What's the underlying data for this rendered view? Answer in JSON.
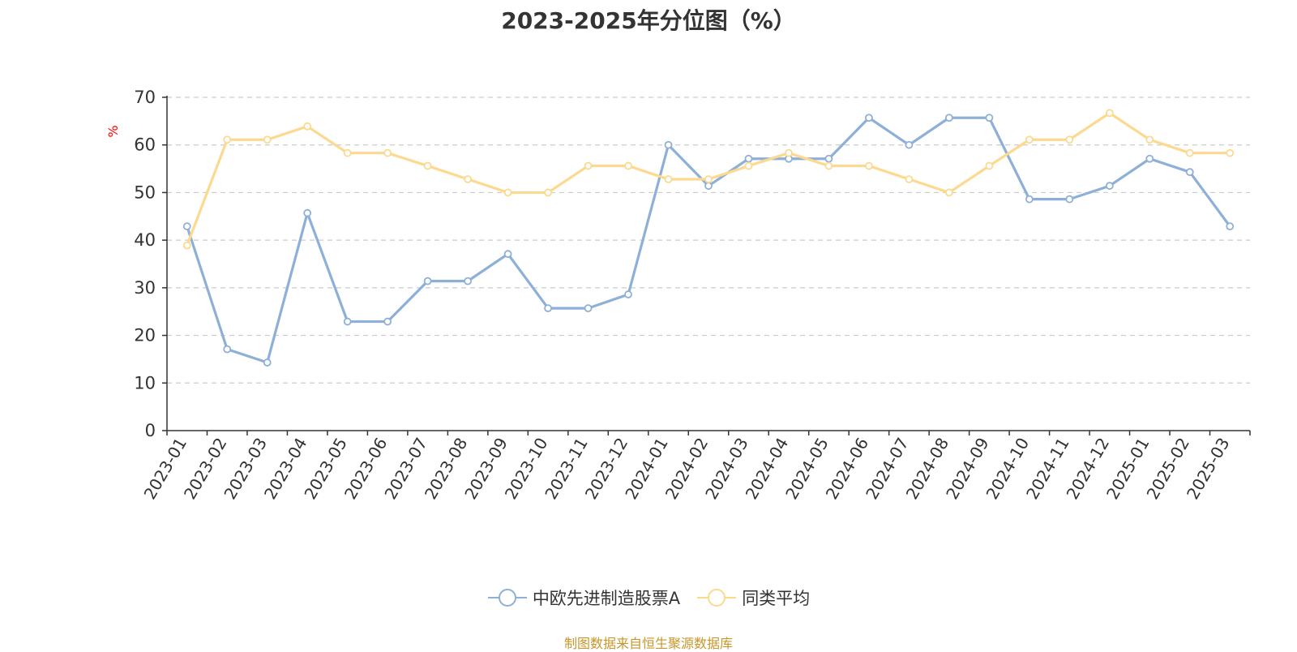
{
  "chart_data": {
    "type": "line",
    "title": "2023-2025年分位图（%）",
    "ylabel": "%",
    "xlabel": "",
    "ylim": [
      0,
      70
    ],
    "yticks": [
      0,
      10,
      20,
      30,
      40,
      50,
      60,
      70
    ],
    "grid": "horizontal dashed",
    "legend_position": "bottom-center",
    "categories": [
      "2023-01",
      "2023-02",
      "2023-03",
      "2023-04",
      "2023-05",
      "2023-06",
      "2023-07",
      "2023-08",
      "2023-09",
      "2023-10",
      "2023-11",
      "2023-12",
      "2024-01",
      "2024-02",
      "2024-03",
      "2024-04",
      "2024-05",
      "2024-06",
      "2024-07",
      "2024-08",
      "2024-09",
      "2024-10",
      "2024-11",
      "2024-12",
      "2025-01",
      "2025-02",
      "2025-03"
    ],
    "series": [
      {
        "name": "中欧先进制造股票A",
        "color": "#8eb0d8",
        "values": [
          42.9,
          17.1,
          14.3,
          45.7,
          22.9,
          22.9,
          31.4,
          31.4,
          37.1,
          25.7,
          25.7,
          28.6,
          60.0,
          51.4,
          57.1,
          57.1,
          57.1,
          65.7,
          60.0,
          65.7,
          65.7,
          48.6,
          48.6,
          51.4,
          57.1,
          54.3,
          42.9
        ]
      },
      {
        "name": "同类平均",
        "color": "#fcd98f",
        "values": [
          38.9,
          61.1,
          61.1,
          63.9,
          58.3,
          58.3,
          55.6,
          52.8,
          50.0,
          50.0,
          55.6,
          55.6,
          52.8,
          52.8,
          55.6,
          58.3,
          55.6,
          55.6,
          52.8,
          50.0,
          55.6,
          61.1,
          61.1,
          66.7,
          61.1,
          58.3,
          58.3
        ]
      }
    ]
  },
  "source_text": "制图数据来自恒生聚源数据库",
  "colors": {
    "title": "#333333",
    "axis": "#333333",
    "grid": "#cccccc",
    "ylabel": "#ff0000",
    "source": "#c8962a"
  }
}
